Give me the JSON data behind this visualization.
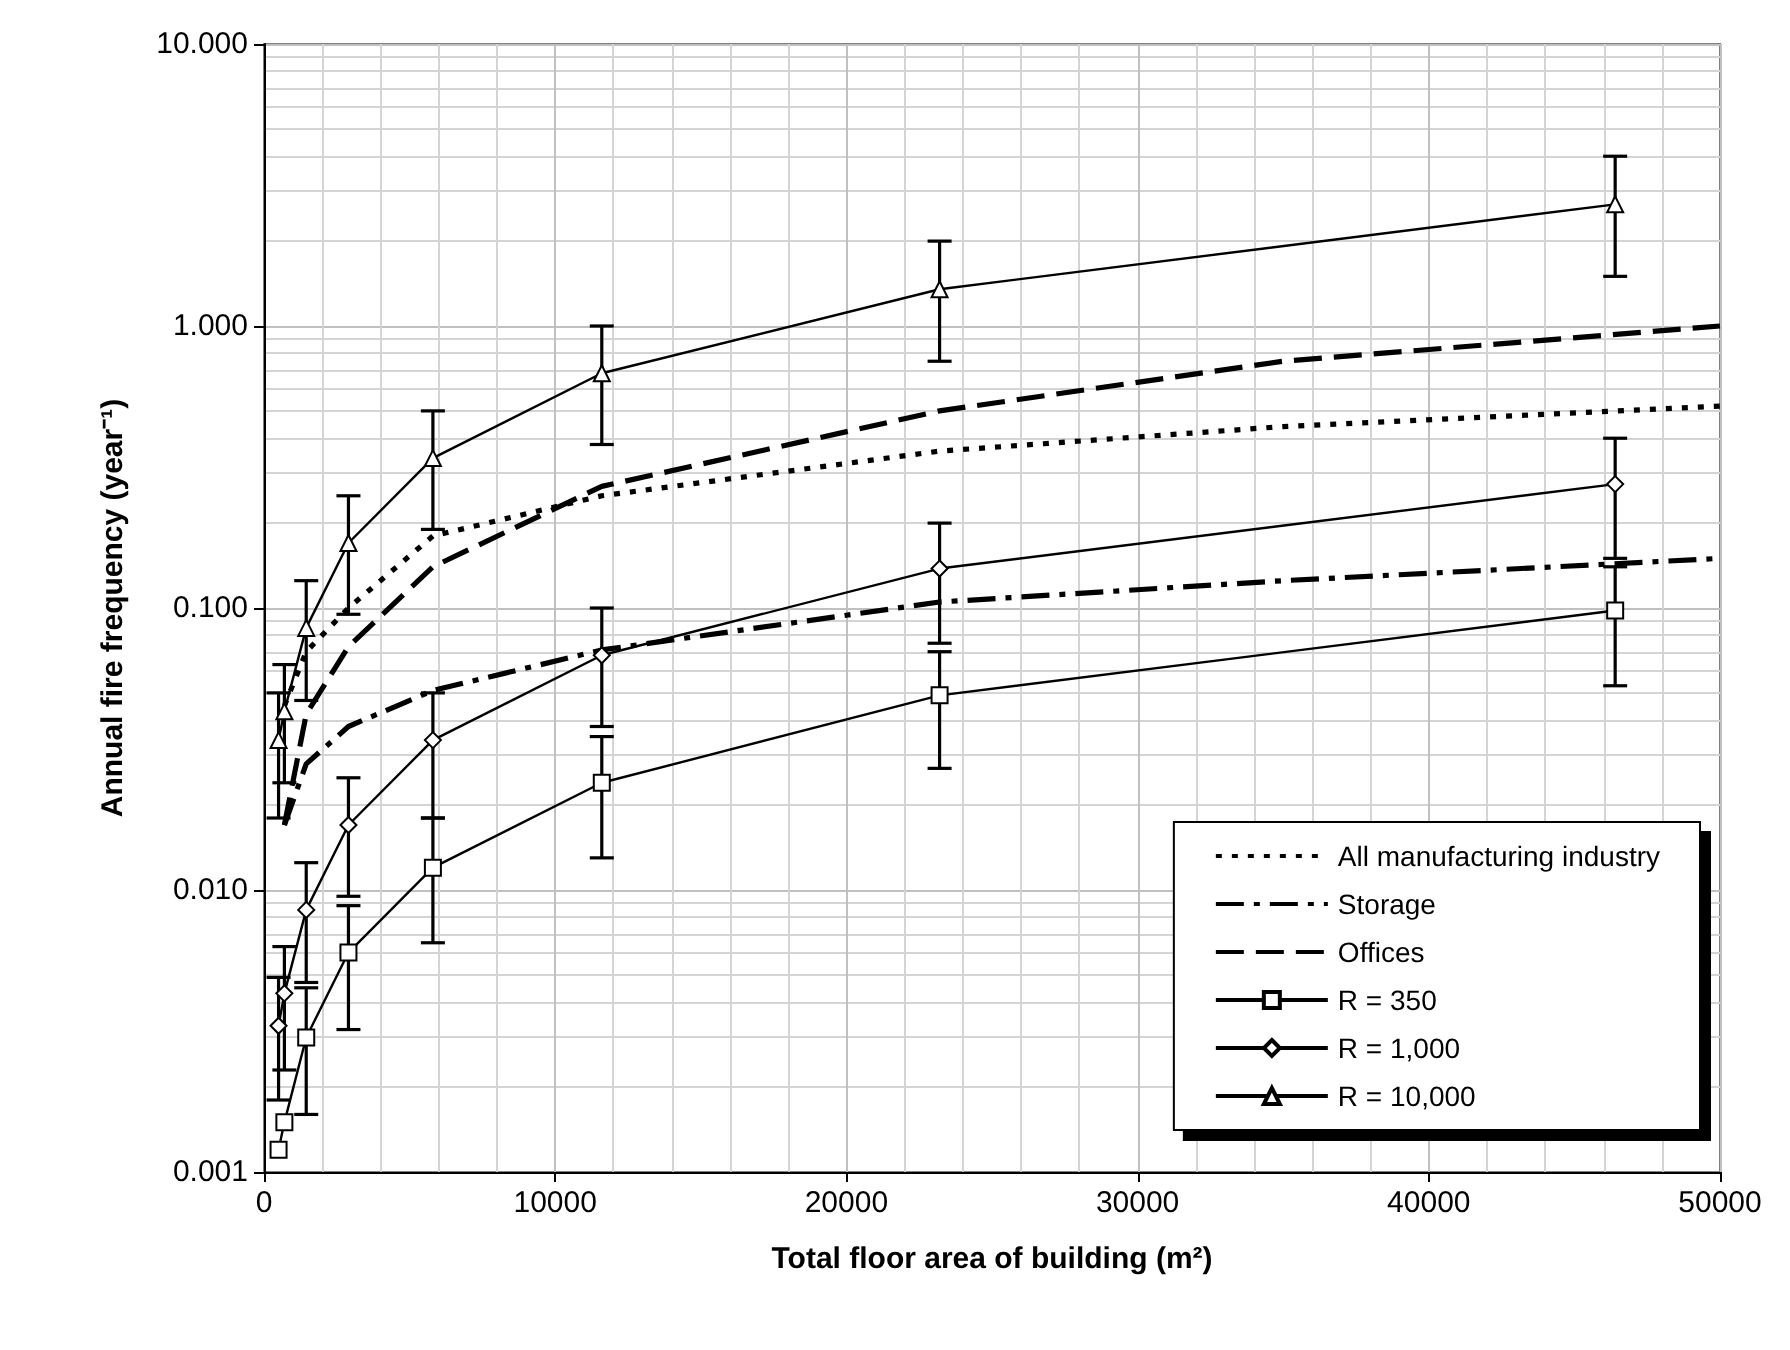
{
  "chart_data": {
    "type": "line",
    "xlabel": "Total floor area of building (m²)",
    "ylabel": "Annual fire frequency (year⁻¹)",
    "xlim": [
      0,
      50000
    ],
    "xticks": [
      0,
      10000,
      20000,
      30000,
      40000,
      50000
    ],
    "ylim": [
      0.001,
      10
    ],
    "log": "y",
    "yticks": [
      0.001,
      {
        "value": 0.01,
        "label": "0.010"
      },
      {
        "value": 0.1,
        "label": "0.100"
      },
      {
        "value": 1,
        "label": "1.000"
      },
      {
        "value": 10,
        "label": "10.000"
      }
    ],
    "grid": true,
    "legend": "bottom right",
    "series": [
      {
        "name": "All manufacturing industry",
        "color": "#000000",
        "marker": "none",
        "line_style": "dotted",
        "x": [
          700,
          1450,
          2900,
          5800,
          11600,
          23200,
          35000,
          50000
        ],
        "values": [
          0.045,
          0.07,
          0.1,
          0.18,
          0.25,
          0.36,
          0.44,
          0.52
        ]
      },
      {
        "name": "Storage",
        "color": "#000000",
        "marker": "none",
        "line_style": "dashdot",
        "x": [
          700,
          1450,
          2900,
          5800,
          11600,
          23200,
          35000,
          50000
        ],
        "values": [
          0.017,
          0.028,
          0.038,
          0.051,
          0.071,
          0.105,
          0.125,
          0.15
        ]
      },
      {
        "name": "Offices",
        "color": "#000000",
        "marker": "none",
        "line_style": "dashed",
        "x": [
          700,
          1450,
          2900,
          5800,
          11600,
          23200,
          35000,
          50000
        ],
        "values": [
          0.017,
          0.042,
          0.073,
          0.14,
          0.27,
          0.5,
          0.75,
          1.0
        ]
      },
      {
        "name": "R = 350",
        "color": "#000000",
        "marker": "square",
        "line_style": "solid",
        "x": [
          500,
          700,
          1450,
          2900,
          5800,
          11600,
          23200,
          46400
        ],
        "values": [
          0.0012,
          0.0015,
          0.003,
          0.006,
          0.012,
          0.024,
          0.049,
          0.098
        ],
        "errors": [
          null,
          null,
          [
            0.0016,
            0.0045
          ],
          [
            0.0032,
            0.0088
          ],
          [
            0.0065,
            0.018
          ],
          [
            0.013,
            0.035
          ],
          [
            0.027,
            0.07
          ],
          [
            0.053,
            0.14
          ]
        ]
      },
      {
        "name": "R = 1,000",
        "color": "#000000",
        "marker": "diamond",
        "line_style": "solid",
        "x": [
          500,
          700,
          1450,
          2900,
          5800,
          11600,
          23200,
          46400
        ],
        "values": [
          0.0033,
          0.0043,
          0.0085,
          0.017,
          0.034,
          0.068,
          0.138,
          0.275
        ],
        "errors": [
          [
            0.0018,
            0.0049
          ],
          [
            0.0023,
            0.0063
          ],
          [
            0.0047,
            0.0125
          ],
          [
            0.0095,
            0.025
          ],
          [
            0.018,
            0.05
          ],
          [
            0.038,
            0.1
          ],
          [
            0.075,
            0.2
          ],
          [
            0.15,
            0.4
          ]
        ]
      },
      {
        "name": "R = 10,000",
        "color": "#000000",
        "marker": "triangle",
        "line_style": "solid",
        "x": [
          500,
          700,
          1450,
          2900,
          5800,
          11600,
          23200,
          46400
        ],
        "values": [
          0.034,
          0.043,
          0.085,
          0.17,
          0.34,
          0.68,
          1.35,
          2.7
        ],
        "errors": [
          [
            0.018,
            0.05
          ],
          [
            0.024,
            0.063
          ],
          [
            0.047,
            0.125
          ],
          [
            0.095,
            0.25
          ],
          [
            0.19,
            0.5
          ],
          [
            0.38,
            1.0
          ],
          [
            0.75,
            2.0
          ],
          [
            1.5,
            4.0
          ]
        ]
      }
    ]
  }
}
